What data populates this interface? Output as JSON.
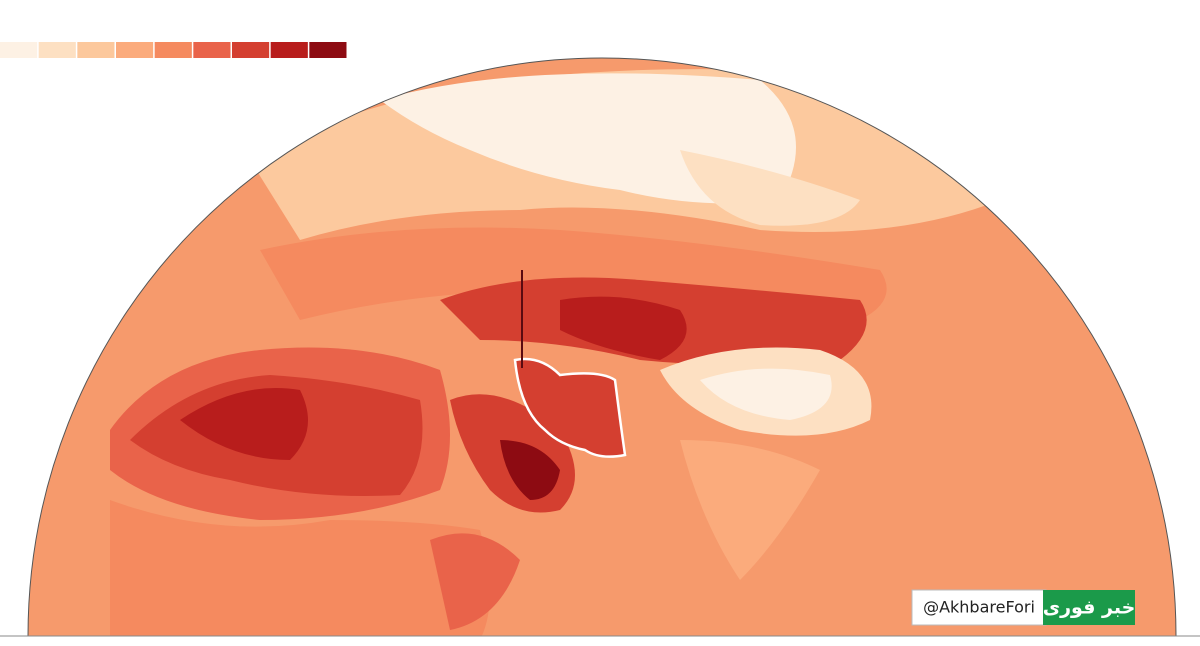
{
  "legend": {
    "colors": [
      "#fdf1e4",
      "#fde0c2",
      "#fcc89c",
      "#fbab7c",
      "#f58a5f",
      "#e9634a",
      "#d43f30",
      "#b81d1c",
      "#8d0b12"
    ]
  },
  "watermark": {
    "handle": "@AkhbareFori",
    "logo": "خبر فوری"
  }
}
